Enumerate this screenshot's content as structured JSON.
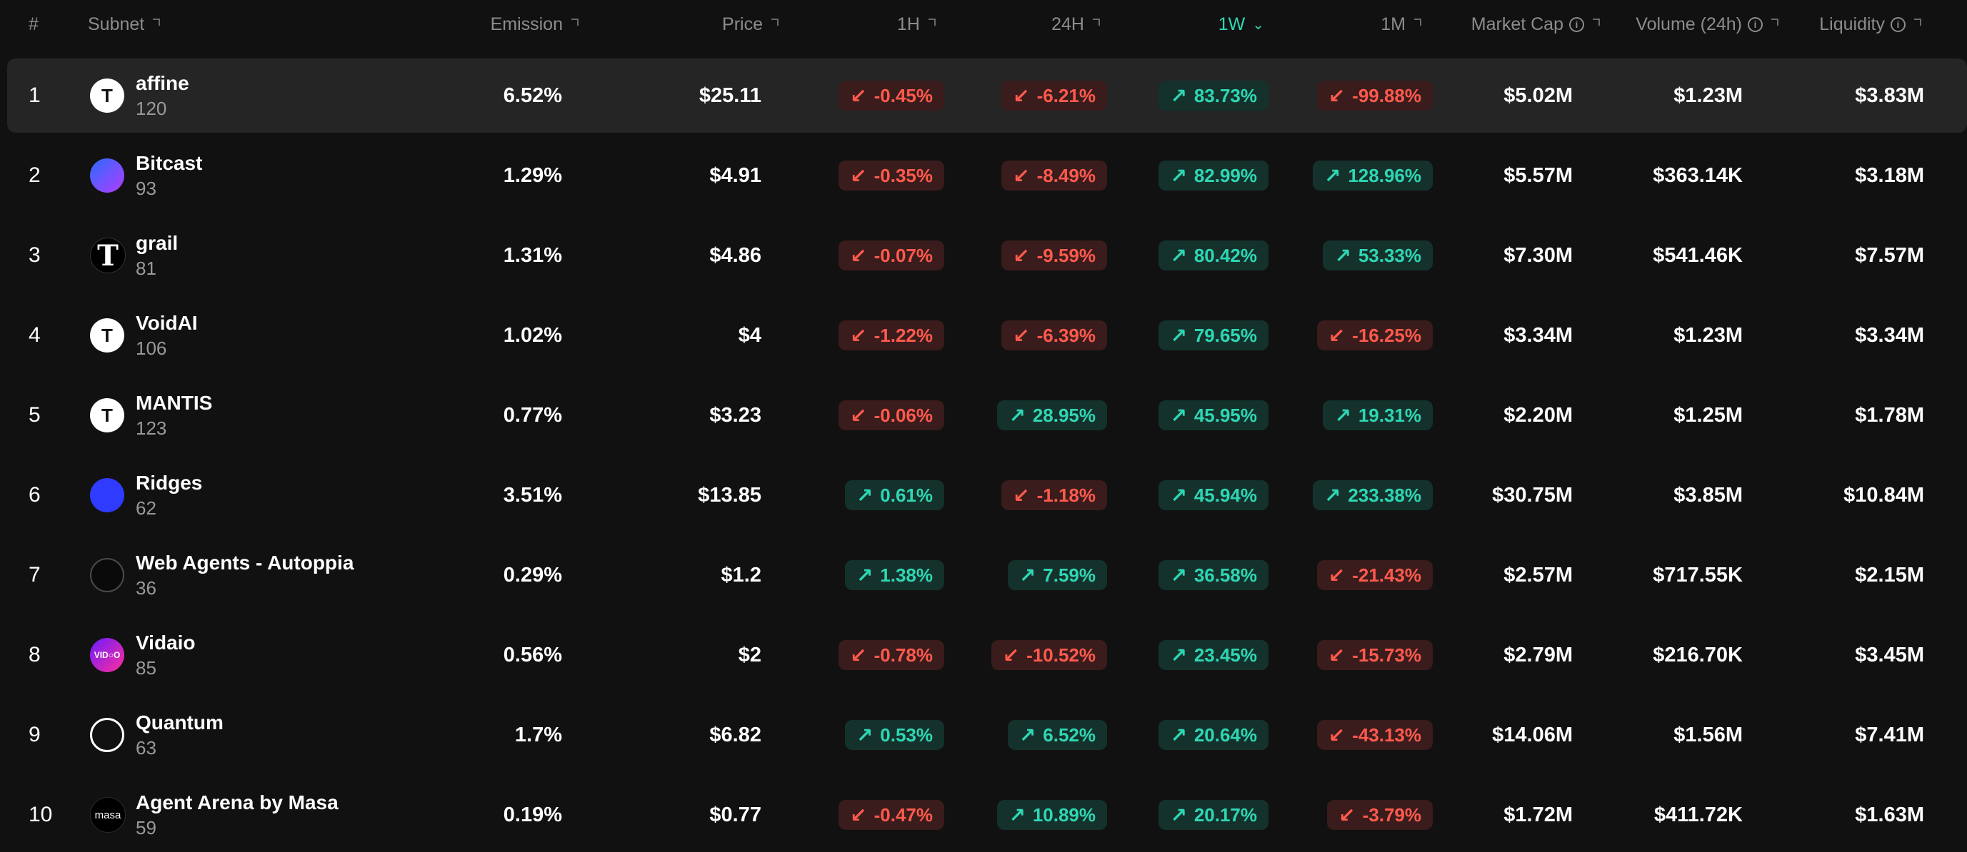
{
  "headers": {
    "rank": "#",
    "subnet": "Subnet",
    "emission": "Emission",
    "price": "Price",
    "h1": "1H",
    "h24": "24H",
    "w1": "1W",
    "m1": "1M",
    "market_cap": "Market Cap",
    "volume": "Volume (24h)",
    "liquidity": "Liquidity"
  },
  "colors": {
    "up": "#2fd6b4",
    "down": "#ff5a4d",
    "accent": "#2fd6b4",
    "background": "#111111"
  },
  "rows": [
    {
      "rank": "1",
      "name": "affine",
      "id": "120",
      "emission": "6.52%",
      "price": "$25.11",
      "h1": {
        "v": "-0.45%",
        "dir": "down"
      },
      "h24": {
        "v": "-6.21%",
        "dir": "down"
      },
      "w1": {
        "v": "83.73%",
        "dir": "up"
      },
      "m1": {
        "v": "-99.88%",
        "dir": "down"
      },
      "market_cap": "$5.02M",
      "volume": "$1.23M",
      "liquidity": "$3.83M",
      "logo": "t",
      "logo_text": "T"
    },
    {
      "rank": "2",
      "name": "Bitcast",
      "id": "93",
      "emission": "1.29%",
      "price": "$4.91",
      "h1": {
        "v": "-0.35%",
        "dir": "down"
      },
      "h24": {
        "v": "-8.49%",
        "dir": "down"
      },
      "w1": {
        "v": "82.99%",
        "dir": "up"
      },
      "m1": {
        "v": "128.96%",
        "dir": "up"
      },
      "market_cap": "$5.57M",
      "volume": "$363.14K",
      "liquidity": "$3.18M",
      "logo": "bit",
      "logo_text": ""
    },
    {
      "rank": "3",
      "name": "grail",
      "id": "81",
      "emission": "1.31%",
      "price": "$4.86",
      "h1": {
        "v": "-0.07%",
        "dir": "down"
      },
      "h24": {
        "v": "-9.59%",
        "dir": "down"
      },
      "w1": {
        "v": "80.42%",
        "dir": "up"
      },
      "m1": {
        "v": "53.33%",
        "dir": "up"
      },
      "market_cap": "$7.30M",
      "volume": "$541.46K",
      "liquidity": "$7.57M",
      "logo": "grail",
      "logo_text": "T"
    },
    {
      "rank": "4",
      "name": "VoidAI",
      "id": "106",
      "emission": "1.02%",
      "price": "$4",
      "h1": {
        "v": "-1.22%",
        "dir": "down"
      },
      "h24": {
        "v": "-6.39%",
        "dir": "down"
      },
      "w1": {
        "v": "79.65%",
        "dir": "up"
      },
      "m1": {
        "v": "-16.25%",
        "dir": "down"
      },
      "market_cap": "$3.34M",
      "volume": "$1.23M",
      "liquidity": "$3.34M",
      "logo": "t",
      "logo_text": "T"
    },
    {
      "rank": "5",
      "name": "MANTIS",
      "id": "123",
      "emission": "0.77%",
      "price": "$3.23",
      "h1": {
        "v": "-0.06%",
        "dir": "down"
      },
      "h24": {
        "v": "28.95%",
        "dir": "up"
      },
      "w1": {
        "v": "45.95%",
        "dir": "up"
      },
      "m1": {
        "v": "19.31%",
        "dir": "up"
      },
      "market_cap": "$2.20M",
      "volume": "$1.25M",
      "liquidity": "$1.78M",
      "logo": "t",
      "logo_text": "T"
    },
    {
      "rank": "6",
      "name": "Ridges",
      "id": "62",
      "emission": "3.51%",
      "price": "$13.85",
      "h1": {
        "v": "0.61%",
        "dir": "up"
      },
      "h24": {
        "v": "-1.18%",
        "dir": "down"
      },
      "w1": {
        "v": "45.94%",
        "dir": "up"
      },
      "m1": {
        "v": "233.38%",
        "dir": "up"
      },
      "market_cap": "$30.75M",
      "volume": "$3.85M",
      "liquidity": "$10.84M",
      "logo": "ridges",
      "logo_text": ""
    },
    {
      "rank": "7",
      "name": "Web Agents - Autoppia",
      "id": "36",
      "emission": "0.29%",
      "price": "$1.2",
      "h1": {
        "v": "1.38%",
        "dir": "up"
      },
      "h24": {
        "v": "7.59%",
        "dir": "up"
      },
      "w1": {
        "v": "36.58%",
        "dir": "up"
      },
      "m1": {
        "v": "-21.43%",
        "dir": "down"
      },
      "market_cap": "$2.57M",
      "volume": "$717.55K",
      "liquidity": "$2.15M",
      "logo": "autoppia",
      "logo_text": ""
    },
    {
      "rank": "8",
      "name": "Vidaio",
      "id": "85",
      "emission": "0.56%",
      "price": "$2",
      "h1": {
        "v": "-0.78%",
        "dir": "down"
      },
      "h24": {
        "v": "-10.52%",
        "dir": "down"
      },
      "w1": {
        "v": "23.45%",
        "dir": "up"
      },
      "m1": {
        "v": "-15.73%",
        "dir": "down"
      },
      "market_cap": "$2.79M",
      "volume": "$216.70K",
      "liquidity": "$3.45M",
      "logo": "vidaio",
      "logo_text": "VID○O"
    },
    {
      "rank": "9",
      "name": "Quantum",
      "id": "63",
      "emission": "1.7%",
      "price": "$6.82",
      "h1": {
        "v": "0.53%",
        "dir": "up"
      },
      "h24": {
        "v": "6.52%",
        "dir": "up"
      },
      "w1": {
        "v": "20.64%",
        "dir": "up"
      },
      "m1": {
        "v": "-43.13%",
        "dir": "down"
      },
      "market_cap": "$14.06M",
      "volume": "$1.56M",
      "liquidity": "$7.41M",
      "logo": "quantum",
      "logo_text": ""
    },
    {
      "rank": "10",
      "name": "Agent Arena by Masa",
      "id": "59",
      "emission": "0.19%",
      "price": "$0.77",
      "h1": {
        "v": "-0.47%",
        "dir": "down"
      },
      "h24": {
        "v": "10.89%",
        "dir": "up"
      },
      "w1": {
        "v": "20.17%",
        "dir": "up"
      },
      "m1": {
        "v": "-3.79%",
        "dir": "down"
      },
      "market_cap": "$1.72M",
      "volume": "$411.72K",
      "liquidity": "$1.63M",
      "logo": "masa",
      "logo_text": "masa"
    }
  ]
}
